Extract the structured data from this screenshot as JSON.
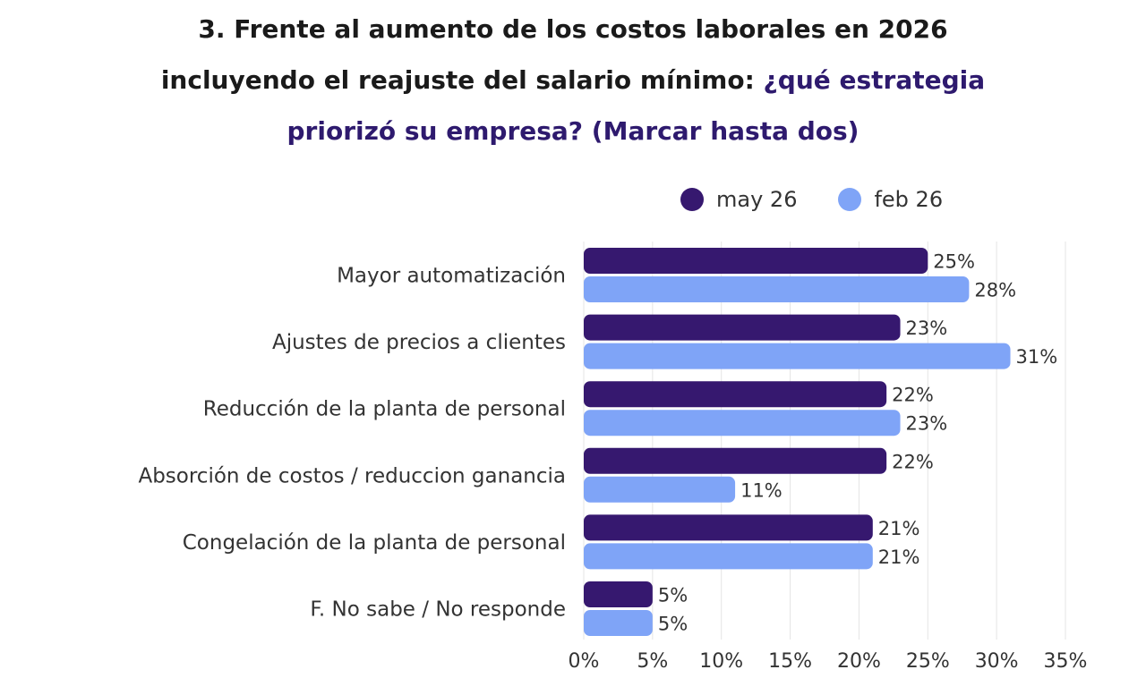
{
  "title": {
    "line1": "3. Frente al aumento de los costos laborales en 2026",
    "line2_plain": "incluyendo el reajuste del salario mínimo: ",
    "line2_highlight": "¿qué estrategia",
    "line3_highlight": "priorizó su empresa? (Marcar hasta dos)"
  },
  "colors": {
    "title_highlight": "#2e1a6e",
    "may26": "#36186f",
    "feb26": "#7fa4f7"
  },
  "legend": {
    "may26_label": "may 26",
    "feb26_label": "feb 26"
  },
  "chart_data": {
    "type": "bar",
    "orientation": "horizontal",
    "categories": [
      "Mayor automatización",
      "Ajustes de precios a clientes",
      "Reducción de la planta de personal",
      "Absorción de costos / reduccion ganancia",
      "Congelación de la planta de personal",
      "F. No sabe / No responde"
    ],
    "series": [
      {
        "name": "may 26",
        "values": [
          25,
          23,
          22,
          22,
          21,
          5
        ]
      },
      {
        "name": "feb 26",
        "values": [
          28,
          31,
          23,
          11,
          21,
          5
        ]
      }
    ],
    "value_labels": {
      "may 26": [
        "25%",
        "23%",
        "22%",
        "22%",
        "21%",
        "5%"
      ],
      "feb 26": [
        "28%",
        "31%",
        "23%",
        "11%",
        "21%",
        "5%"
      ]
    },
    "xlim": [
      0,
      35
    ],
    "xticks": [
      "0%",
      "5%",
      "10%",
      "15%",
      "20%",
      "25%",
      "30%",
      "35%"
    ],
    "grid": true,
    "legend_position": "top-right"
  }
}
